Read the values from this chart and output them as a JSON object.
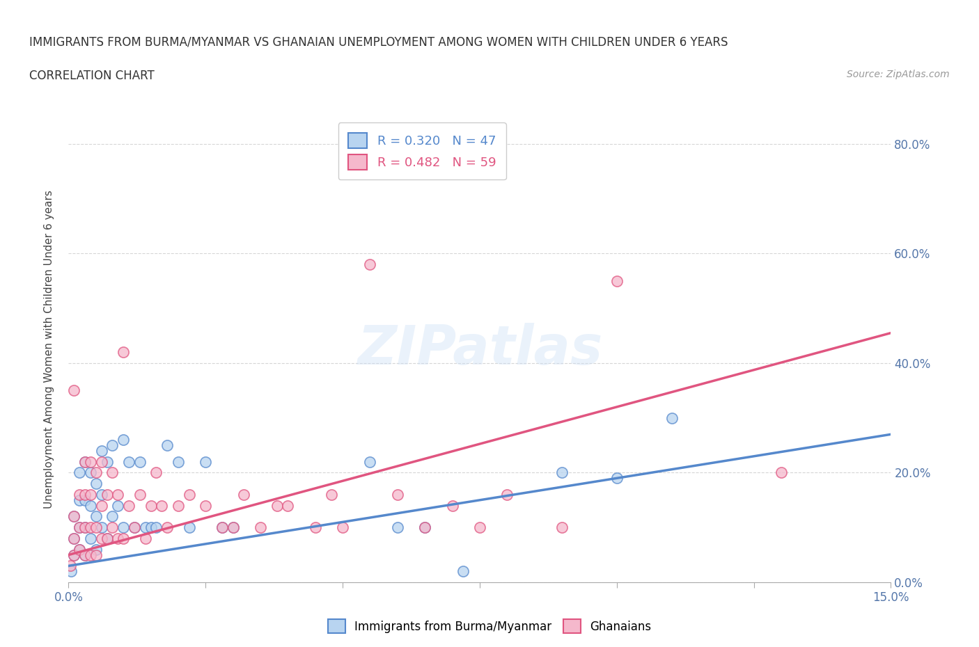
{
  "title": "IMMIGRANTS FROM BURMA/MYANMAR VS GHANAIAN UNEMPLOYMENT AMONG WOMEN WITH CHILDREN UNDER 6 YEARS",
  "subtitle": "CORRELATION CHART",
  "source": "Source: ZipAtlas.com",
  "ylabel": "Unemployment Among Women with Children Under 6 years",
  "xlim": [
    0.0,
    0.15
  ],
  "ylim": [
    0.0,
    0.85
  ],
  "yticks": [
    0.0,
    0.2,
    0.4,
    0.6,
    0.8
  ],
  "xtick_positions": [
    0.0,
    0.025,
    0.05,
    0.075,
    0.1,
    0.125,
    0.15
  ],
  "grid_color": "#cccccc",
  "background_color": "#ffffff",
  "series1_color": "#b8d4f0",
  "series2_color": "#f5b8cc",
  "series1_label": "Immigrants from Burma/Myanmar",
  "series2_label": "Ghanaians",
  "series1_R": "0.320",
  "series1_N": "47",
  "series2_R": "0.482",
  "series2_N": "59",
  "series1_line_color": "#5588cc",
  "series2_line_color": "#e05580",
  "watermark": "ZIPatlas",
  "series1_x": [
    0.0005,
    0.001,
    0.001,
    0.001,
    0.002,
    0.002,
    0.002,
    0.002,
    0.003,
    0.003,
    0.003,
    0.003,
    0.004,
    0.004,
    0.004,
    0.005,
    0.005,
    0.005,
    0.006,
    0.006,
    0.006,
    0.007,
    0.007,
    0.008,
    0.008,
    0.009,
    0.01,
    0.01,
    0.011,
    0.012,
    0.013,
    0.014,
    0.015,
    0.016,
    0.018,
    0.02,
    0.022,
    0.025,
    0.028,
    0.03,
    0.055,
    0.06,
    0.065,
    0.072,
    0.09,
    0.1,
    0.11
  ],
  "series1_y": [
    0.02,
    0.05,
    0.08,
    0.12,
    0.06,
    0.1,
    0.15,
    0.2,
    0.05,
    0.1,
    0.15,
    0.22,
    0.08,
    0.14,
    0.2,
    0.06,
    0.12,
    0.18,
    0.1,
    0.16,
    0.24,
    0.08,
    0.22,
    0.12,
    0.25,
    0.14,
    0.1,
    0.26,
    0.22,
    0.1,
    0.22,
    0.1,
    0.1,
    0.1,
    0.25,
    0.22,
    0.1,
    0.22,
    0.1,
    0.1,
    0.22,
    0.1,
    0.1,
    0.02,
    0.2,
    0.19,
    0.3
  ],
  "series2_x": [
    0.0003,
    0.001,
    0.001,
    0.001,
    0.001,
    0.002,
    0.002,
    0.002,
    0.003,
    0.003,
    0.003,
    0.003,
    0.004,
    0.004,
    0.004,
    0.004,
    0.005,
    0.005,
    0.005,
    0.006,
    0.006,
    0.006,
    0.007,
    0.007,
    0.008,
    0.008,
    0.009,
    0.009,
    0.01,
    0.01,
    0.011,
    0.012,
    0.013,
    0.014,
    0.015,
    0.016,
    0.017,
    0.018,
    0.02,
    0.022,
    0.025,
    0.028,
    0.03,
    0.032,
    0.035,
    0.038,
    0.04,
    0.045,
    0.048,
    0.05,
    0.055,
    0.06,
    0.065,
    0.07,
    0.075,
    0.08,
    0.09,
    0.1,
    0.13
  ],
  "series2_y": [
    0.03,
    0.05,
    0.08,
    0.12,
    0.35,
    0.06,
    0.1,
    0.16,
    0.05,
    0.1,
    0.16,
    0.22,
    0.05,
    0.1,
    0.16,
    0.22,
    0.05,
    0.1,
    0.2,
    0.08,
    0.14,
    0.22,
    0.08,
    0.16,
    0.1,
    0.2,
    0.08,
    0.16,
    0.08,
    0.42,
    0.14,
    0.1,
    0.16,
    0.08,
    0.14,
    0.2,
    0.14,
    0.1,
    0.14,
    0.16,
    0.14,
    0.1,
    0.1,
    0.16,
    0.1,
    0.14,
    0.14,
    0.1,
    0.16,
    0.1,
    0.58,
    0.16,
    0.1,
    0.14,
    0.1,
    0.16,
    0.1,
    0.55,
    0.2
  ],
  "line1_x0": 0.0,
  "line1_y0": 0.03,
  "line1_x1": 0.15,
  "line1_y1": 0.27,
  "line2_x0": 0.0,
  "line2_y0": 0.05,
  "line2_x1": 0.15,
  "line2_y1": 0.455
}
